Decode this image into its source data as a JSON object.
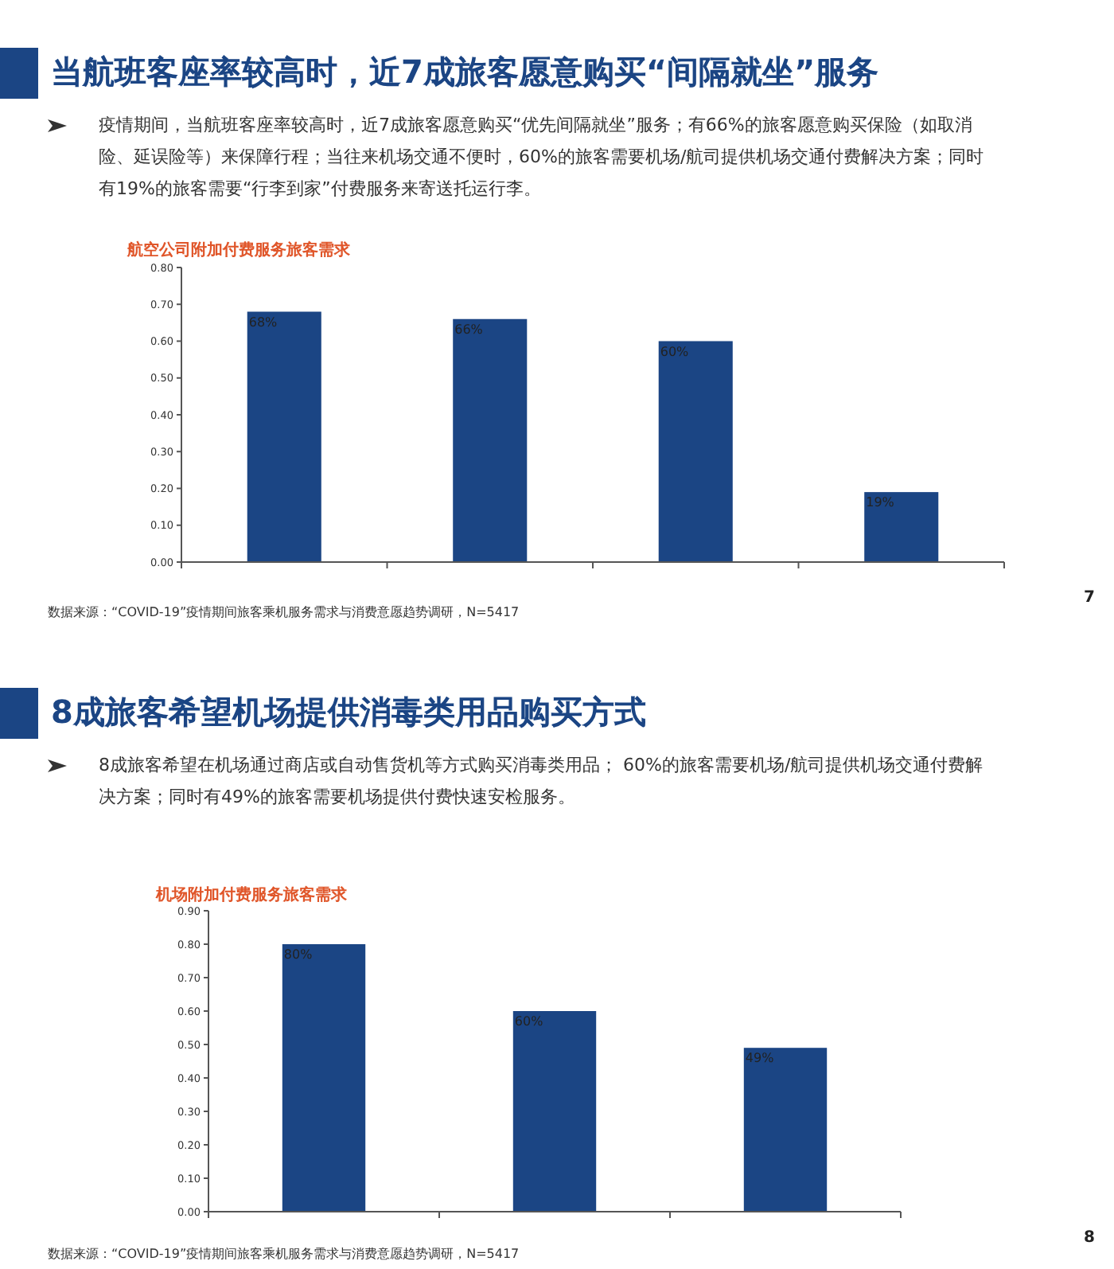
{
  "chart_data": [
    {
      "type": "bar",
      "title": "当航班客座率较高时，近7成旅客愿意购买“间隔就坐”服务",
      "subtitle": "疫情期间，当航班客座率较高时，近7成旅客愿意购买“优先间隔就坐”服务；有66%的旅客愿意购买保险（如取消险、延误险等）来保障行程；当往来机场交通不便时，60%的旅客需要机场/航司提供机场交通付费解决方案；同时有19%的旅客需要“行李到家”付费服务来寄送托运行李。",
      "annotations": [
        "航空公司附加付费服务旅客需求",
        "数据来源：“COVID-19”疫情期间旅客乘机服务需求与消费意愿趋势调研，N=5417",
        "7"
      ],
      "categories": [
        null,
        null,
        null,
        null
      ],
      "values": [
        0.68,
        0.66,
        0.6,
        0.19
      ],
      "value_labels": [
        "68%",
        "66%",
        "60%",
        "19%"
      ],
      "color": "#1b4584",
      "ylim": [
        0,
        0.8
      ],
      "yticks": [
        {
          "value": 0,
          "label": "0.00"
        },
        {
          "value": 0.1,
          "label": "0.10"
        },
        {
          "value": 0.2,
          "label": "0.20"
        },
        {
          "value": 0.3,
          "label": "0.30"
        },
        {
          "value": 0.4,
          "label": "0.40"
        },
        {
          "value": 0.5,
          "label": "0.50"
        },
        {
          "value": 0.6,
          "label": "0.60"
        },
        {
          "value": 0.7,
          "label": "0.70"
        },
        {
          "value": 0.8,
          "label": "0.80"
        }
      ]
    },
    {
      "type": "bar",
      "title": "8成旅客希望机场提供消毒类用品购买方式",
      "subtitle": "8成旅客希望在机场通过商店或自动售货机等方式购买消毒类用品； 60%的旅客需要机场/航司提供机场交通付费解决方案；同时有49%的旅客需要机场提供付费快速安检服务。",
      "annotations": [
        "机场附加付费服务旅客需求",
        "数据来源：“COVID-19”疫情期间旅客乘机服务需求与消费意愿趋势调研，N=5417",
        "8"
      ],
      "categories": [
        null,
        null,
        null
      ],
      "values": [
        0.8,
        0.6,
        0.49
      ],
      "value_labels": [
        "80%",
        "60%",
        "49%"
      ],
      "color": "#1b4584",
      "ylim": [
        0,
        0.9
      ],
      "yticks": [
        {
          "value": 0,
          "label": "0.00"
        },
        {
          "value": 0.1,
          "label": "0.10"
        },
        {
          "value": 0.2,
          "label": "0.20"
        },
        {
          "value": 0.3,
          "label": "0.30"
        },
        {
          "value": 0.4,
          "label": "0.40"
        },
        {
          "value": 0.5,
          "label": "0.50"
        },
        {
          "value": 0.6,
          "label": "0.60"
        },
        {
          "value": 0.7,
          "label": "0.70"
        },
        {
          "value": 0.8,
          "label": "0.80"
        },
        {
          "value": 0.9,
          "label": "0.90"
        }
      ]
    }
  ]
}
